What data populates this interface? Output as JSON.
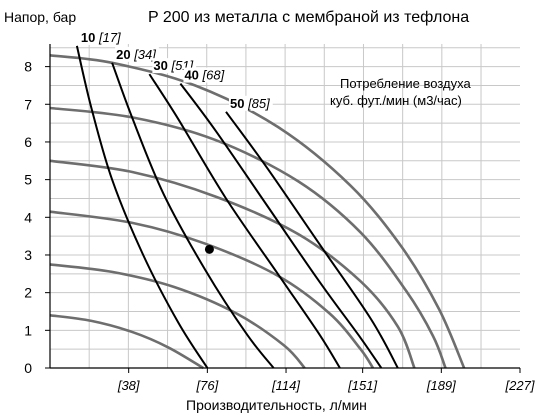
{
  "chart_data": {
    "type": "line",
    "title": "P 200 из металла с мембраной из тефлона",
    "ylabel": "Напор, бар",
    "xlabel": "Производительность, л/мин",
    "legend_note": [
      "Потребление воздуха",
      "куб. фут./мин (м3/час)"
    ],
    "x_unit_lpm_per_tick": 37.85,
    "xlim": [
      0,
      227
    ],
    "ylim": [
      0,
      8.6
    ],
    "x_ticks": [
      {
        "value": 38,
        "label": "[38]"
      },
      {
        "value": 76,
        "label": "[76]"
      },
      {
        "value": 114,
        "label": "[114]"
      },
      {
        "value": 151,
        "label": "[151]"
      },
      {
        "value": 189,
        "label": "[189]"
      },
      {
        "value": 227,
        "label": "[227]"
      }
    ],
    "y_ticks": [
      0,
      1,
      2,
      3,
      4,
      5,
      6,
      7,
      8
    ],
    "grid": true,
    "pump_curves": [
      {
        "air_pressure_bar": 1.4,
        "points": [
          [
            0,
            1.4
          ],
          [
            20,
            1.25
          ],
          [
            40,
            0.95
          ],
          [
            57,
            0.55
          ],
          [
            74,
            0.0
          ]
        ]
      },
      {
        "air_pressure_bar": 2.75,
        "points": [
          [
            0,
            2.75
          ],
          [
            30,
            2.55
          ],
          [
            60,
            2.15
          ],
          [
            90,
            1.45
          ],
          [
            113,
            0.6
          ],
          [
            123,
            0.0
          ]
        ]
      },
      {
        "air_pressure_bar": 4.15,
        "points": [
          [
            0,
            4.15
          ],
          [
            40,
            3.85
          ],
          [
            75,
            3.3
          ],
          [
            110,
            2.45
          ],
          [
            135,
            1.45
          ],
          [
            150,
            0.5
          ],
          [
            156,
            0.0
          ]
        ]
      },
      {
        "air_pressure_bar": 5.5,
        "points": [
          [
            0,
            5.5
          ],
          [
            40,
            5.2
          ],
          [
            80,
            4.55
          ],
          [
            120,
            3.55
          ],
          [
            150,
            2.3
          ],
          [
            168,
            1.1
          ],
          [
            176,
            0.0
          ]
        ]
      },
      {
        "air_pressure_bar": 6.9,
        "points": [
          [
            0,
            6.9
          ],
          [
            40,
            6.65
          ],
          [
            80,
            6.05
          ],
          [
            120,
            4.95
          ],
          [
            150,
            3.6
          ],
          [
            172,
            2.05
          ],
          [
            185,
            0.85
          ],
          [
            191,
            0.0
          ]
        ]
      },
      {
        "air_pressure_bar": 8.3,
        "points": [
          [
            0,
            8.3
          ],
          [
            30,
            8.1
          ],
          [
            70,
            7.5
          ],
          [
            110,
            6.4
          ],
          [
            145,
            4.85
          ],
          [
            170,
            3.2
          ],
          [
            188,
            1.55
          ],
          [
            200,
            0.0
          ]
        ]
      }
    ],
    "air_consumption_curves": [
      {
        "name": "10",
        "alt": "[17]",
        "points": [
          [
            13,
            8.55
          ],
          [
            20,
            6.9
          ],
          [
            30,
            5.0
          ],
          [
            45,
            3.0
          ],
          [
            62,
            1.2
          ],
          [
            76,
            0.0
          ]
        ]
      },
      {
        "name": "20",
        "alt": "[34]",
        "points": [
          [
            30,
            8.1
          ],
          [
            40,
            6.6
          ],
          [
            55,
            4.6
          ],
          [
            75,
            2.6
          ],
          [
            95,
            0.9
          ],
          [
            108,
            0.0
          ]
        ]
      },
      {
        "name": "30",
        "alt": "[51]",
        "points": [
          [
            48,
            7.8
          ],
          [
            62,
            6.6
          ],
          [
            85,
            4.5
          ],
          [
            110,
            2.5
          ],
          [
            130,
            0.9
          ],
          [
            140,
            0.0
          ]
        ]
      },
      {
        "name": "40",
        "alt": "[68]",
        "points": [
          [
            63,
            7.55
          ],
          [
            80,
            6.3
          ],
          [
            105,
            4.3
          ],
          [
            130,
            2.3
          ],
          [
            150,
            0.8
          ],
          [
            160,
            0.0
          ]
        ]
      },
      {
        "name": "50",
        "alt": "[85]",
        "points": [
          [
            85,
            6.8
          ],
          [
            105,
            5.3
          ],
          [
            130,
            3.3
          ],
          [
            155,
            1.3
          ],
          [
            168,
            0.0
          ]
        ]
      }
    ],
    "marker_point": {
      "x": 77,
      "y": 3.15
    }
  }
}
